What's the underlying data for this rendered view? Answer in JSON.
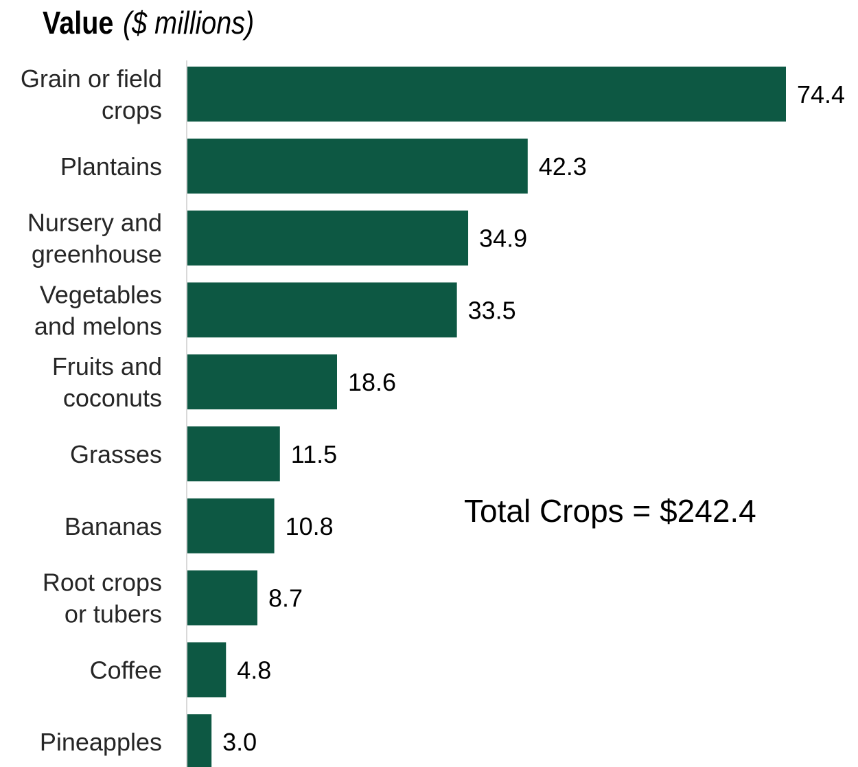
{
  "chart_data": {
    "type": "bar",
    "orientation": "horizontal",
    "title": "Value",
    "title_unit": "($ millions)",
    "categories": [
      [
        "Grain or field",
        "crops"
      ],
      [
        "Plantains"
      ],
      [
        "Nursery and",
        "greenhouse"
      ],
      [
        "Vegetables",
        "and melons"
      ],
      [
        "Fruits and",
        "coconuts"
      ],
      [
        "Grasses"
      ],
      [
        "Bananas"
      ],
      [
        "Root crops",
        "or tubers"
      ],
      [
        "Coffee"
      ],
      [
        "Pineapples"
      ]
    ],
    "values": [
      74.4,
      42.3,
      34.9,
      33.5,
      18.6,
      11.5,
      10.8,
      8.7,
      4.8,
      3.0
    ],
    "value_labels": [
      "74.4",
      "42.3",
      "34.9",
      "33.5",
      "18.6",
      "11.5",
      "10.8",
      "8.7",
      "4.8",
      "3.0"
    ],
    "xlim": [
      0,
      74.4
    ],
    "annotation": "Total Crops = $242.4",
    "grid": false,
    "legend": "none",
    "bar_color": "#0d5843",
    "axis_line_color": "#d9d9d9"
  }
}
